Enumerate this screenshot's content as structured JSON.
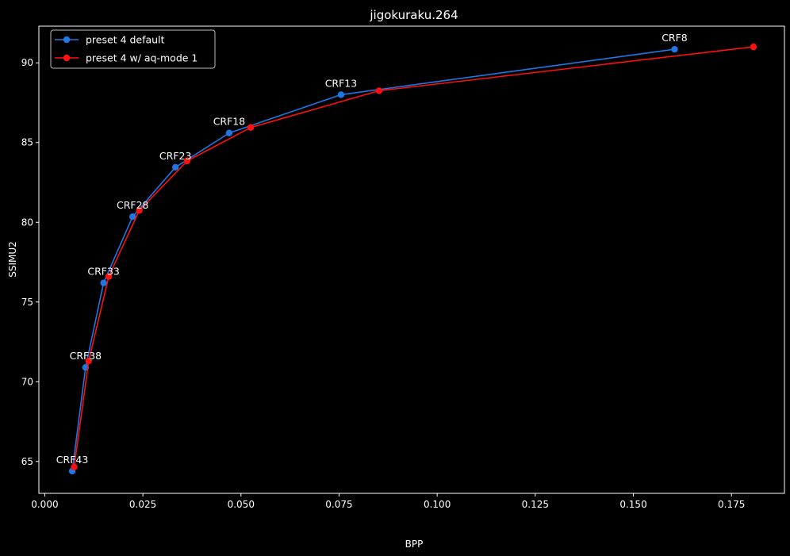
{
  "chart_data": {
    "type": "line",
    "title": "jigokuraku.264",
    "xlabel": "BPP",
    "ylabel": "SSIMU2",
    "xlim": [
      -0.0015,
      0.1885
    ],
    "ylim": [
      63.0,
      92.3
    ],
    "xticks": [
      0.0,
      0.025,
      0.05,
      0.075,
      0.1,
      0.125,
      0.15,
      0.175
    ],
    "xtick_labels": [
      "0.000",
      "0.025",
      "0.050",
      "0.075",
      "0.100",
      "0.125",
      "0.150",
      "0.175"
    ],
    "yticks": [
      65,
      70,
      75,
      80,
      85,
      90
    ],
    "ytick_labels": [
      "65",
      "70",
      "75",
      "80",
      "85",
      "90"
    ],
    "grid": false,
    "legend_position": "top-left",
    "series": [
      {
        "name": "preset 4 default",
        "color": "#1f77e4",
        "x": [
          0.007,
          0.0104,
          0.015,
          0.0224,
          0.0333,
          0.047,
          0.0755,
          0.1605
        ],
        "y": [
          64.4,
          70.9,
          76.2,
          80.35,
          83.45,
          85.6,
          88.0,
          90.85
        ]
      },
      {
        "name": "preset 4 w/ aq-mode 1",
        "color": "#ff1010",
        "x": [
          0.0075,
          0.0112,
          0.0163,
          0.0241,
          0.0363,
          0.0525,
          0.0852,
          0.1806
        ],
        "y": [
          64.65,
          71.3,
          76.6,
          80.75,
          83.85,
          85.95,
          88.25,
          91.0
        ]
      }
    ],
    "annotations": [
      {
        "text": "CRF43",
        "x": 0.007,
        "y": 64.4
      },
      {
        "text": "CRF38",
        "x": 0.0104,
        "y": 70.9
      },
      {
        "text": "CRF33",
        "x": 0.015,
        "y": 76.2
      },
      {
        "text": "CRF28",
        "x": 0.0224,
        "y": 80.35
      },
      {
        "text": "CRF23",
        "x": 0.0333,
        "y": 83.45
      },
      {
        "text": "CRF18",
        "x": 0.047,
        "y": 85.6
      },
      {
        "text": "CRF13",
        "x": 0.0755,
        "y": 88.0
      },
      {
        "text": "CRF8",
        "x": 0.1605,
        "y": 90.85
      }
    ]
  }
}
